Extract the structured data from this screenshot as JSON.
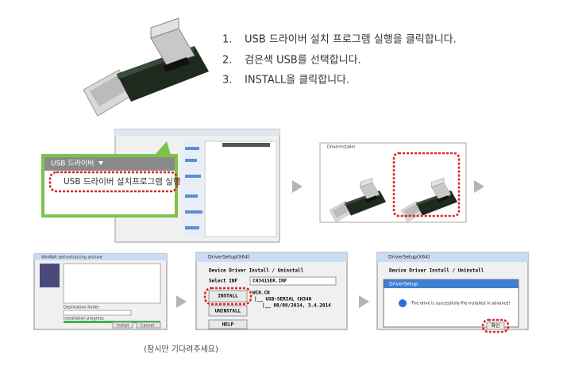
{
  "steps": [
    {
      "number": "1.",
      "text": "USB 드라이버 설치 프로그램 실행을 클릭합니다."
    },
    {
      "number": "2.",
      "text": "검은색 USB를 선택합니다."
    },
    {
      "number": "3.",
      "text": "INSTALL을 클릭합니다."
    }
  ],
  "menu": {
    "title": "USB 드라이버",
    "item": "USB 드라이버 설치프로그램 실행"
  },
  "installer_window": {
    "title": "DriverInstaller"
  },
  "extract_window": {
    "title": "WinRAR self-extracting archive",
    "destination_label": "Destination folder",
    "progress_label": "Installation progress",
    "buttons": [
      "Install",
      "Cancel"
    ]
  },
  "setup_window": {
    "title": "DriverSetup(X64)",
    "heading": "Device Driver Install / Uninstall",
    "select_label": "Select INF",
    "select_value": "CH341SER.INF",
    "buttons": [
      "INSTALL",
      "UNINSTALL",
      "HELP"
    ],
    "info": [
      "WCH.CN",
      "|__ USB-SERIAL CH340",
      "|__ 08/08/2014, 3.4.2014"
    ]
  },
  "success_window": {
    "title": "DriverSetup(X64)",
    "heading": "Device Driver Install / Uninstall",
    "dialog_title": "DriverSetup",
    "message": "The drive is successfully Pre-installed in advance!",
    "ok": "확인"
  },
  "caption": "(잠시만 기다려주세요)"
}
